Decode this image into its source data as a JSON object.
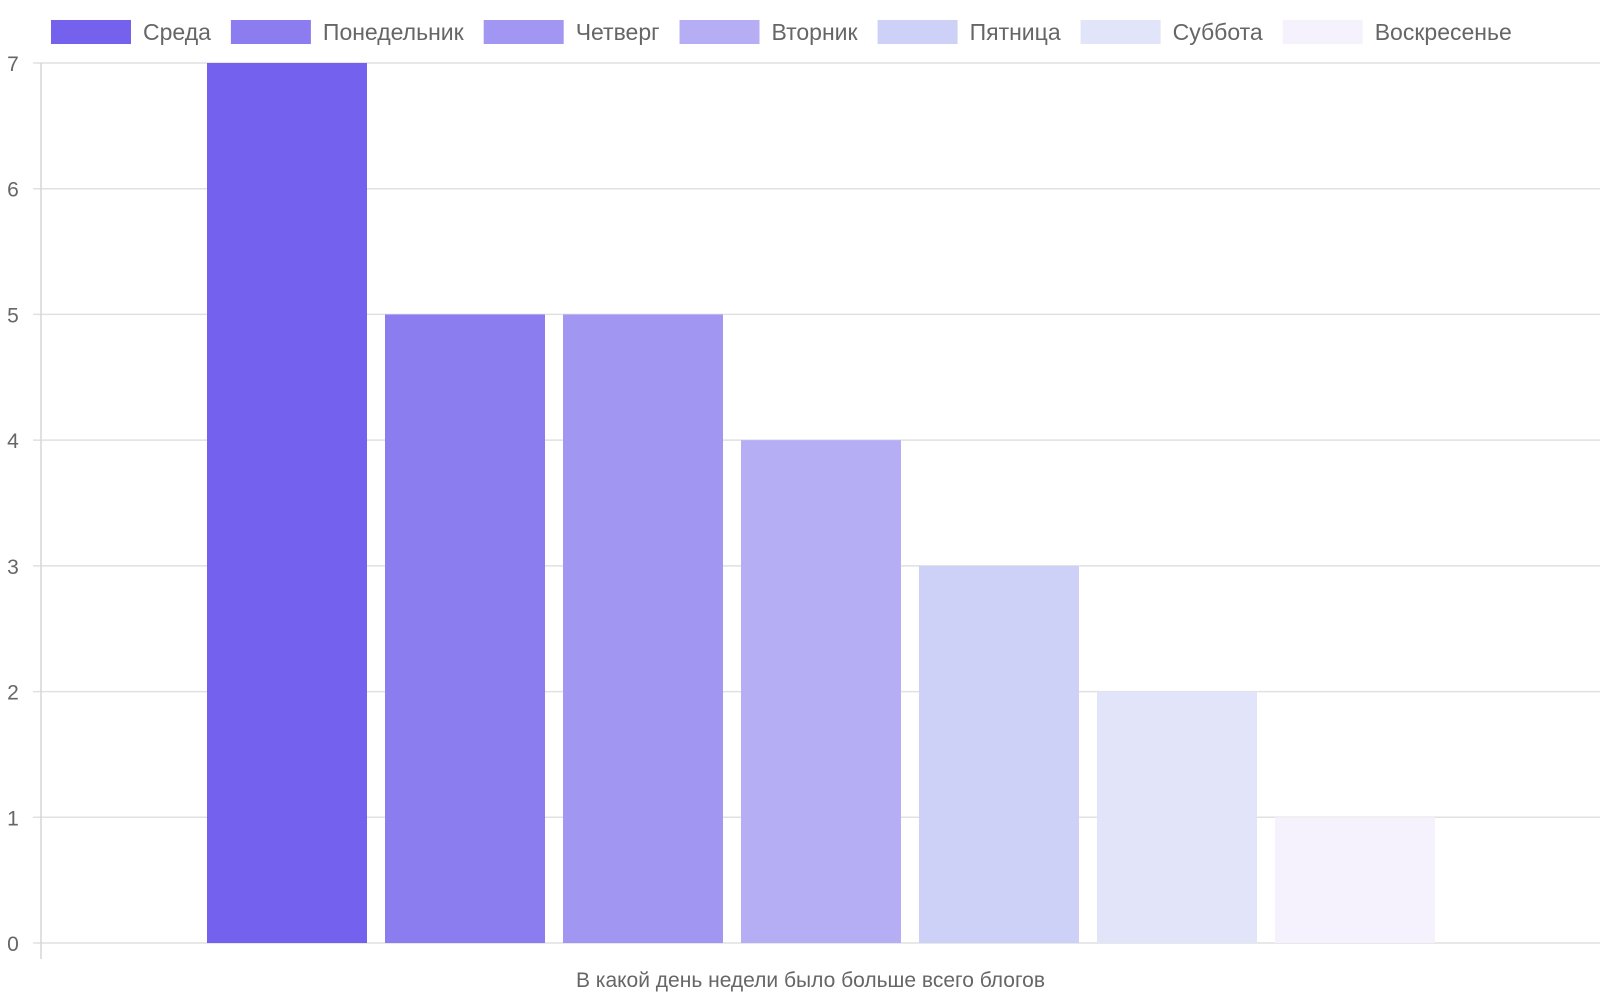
{
  "chart_data": {
    "type": "bar",
    "xlabel": "В какой день недели было больше всего блогов",
    "ylabel": "",
    "ylim": [
      0,
      7
    ],
    "yticks": [
      0,
      1,
      2,
      3,
      4,
      5,
      6,
      7
    ],
    "grid": true,
    "legend_position": "top",
    "series": [
      {
        "name": "Среда",
        "value": 7,
        "color": "#7461ee"
      },
      {
        "name": "Понедельник",
        "value": 5,
        "color": "#8b7df0"
      },
      {
        "name": "Четверг",
        "value": 5,
        "color": "#a196f2"
      },
      {
        "name": "Вторник",
        "value": 4,
        "color": "#b6aef4"
      },
      {
        "name": "Пятница",
        "value": 3,
        "color": "#ced1f7"
      },
      {
        "name": "Суббота",
        "value": 2,
        "color": "#e2e4fa"
      },
      {
        "name": "Воскресенье",
        "value": 1,
        "color": "#f5f2fd"
      }
    ]
  }
}
